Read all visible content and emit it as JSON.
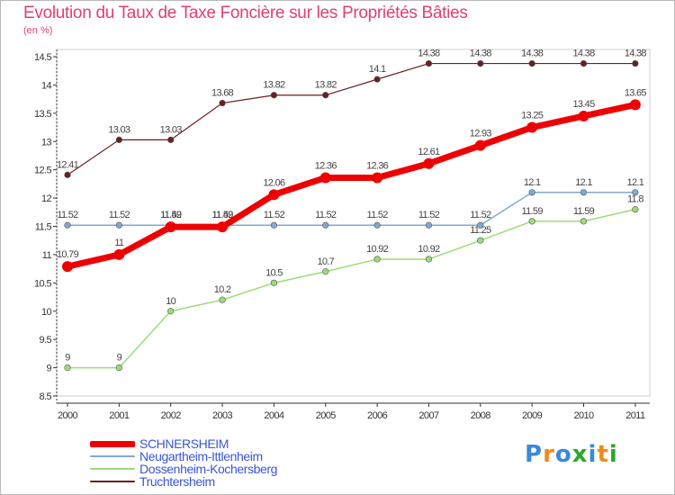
{
  "chart_data": {
    "type": "line",
    "title": "Evolution du Taux de Taxe Foncière sur les Propriétés Bâties",
    "unit_label": "(en %)",
    "x": [
      "2000",
      "2001",
      "2002",
      "2003",
      "2004",
      "2005",
      "2006",
      "2007",
      "2008",
      "2009",
      "2010",
      "2011"
    ],
    "yticks": [
      "8.5",
      "9",
      "9.5",
      "10",
      "10.5",
      "11",
      "11.5",
      "12",
      "12.5",
      "13",
      "13.5",
      "14",
      "14.5"
    ],
    "ylim": [
      8.5,
      14.5
    ],
    "grid": false,
    "legend_position": "bottom-left",
    "series": [
      {
        "name": "Truchtersheim",
        "color": "#6b1f1f",
        "width": 1.2,
        "values": [
          12.41,
          13.03,
          13.03,
          13.68,
          13.82,
          13.82,
          14.1,
          14.38,
          14.38,
          14.38,
          14.38,
          14.38
        ],
        "labels": [
          "12.41",
          "13.03",
          "13.03",
          "13.68",
          "13.82",
          "13.82",
          "14.1",
          "14.38",
          "14.38",
          "14.38",
          "14.38",
          "14.38"
        ]
      },
      {
        "name": "Dossenheim-Kochersberg",
        "color": "#99dd77",
        "width": 1.5,
        "values": [
          9,
          9,
          10,
          10.2,
          10.5,
          10.7,
          10.92,
          10.92,
          11.25,
          11.59,
          11.59,
          11.8
        ],
        "labels": [
          "9",
          "9",
          "10",
          "10.2",
          "10.5",
          "10.7",
          "10.92",
          "10.92",
          "11.25",
          "11.59",
          "11.59",
          "11.8"
        ]
      },
      {
        "name": "Neugartheim-Ittlenheim",
        "color": "#7faad0",
        "width": 1.5,
        "values": [
          11.52,
          11.52,
          11.52,
          11.52,
          11.52,
          11.52,
          11.52,
          11.52,
          11.52,
          12.1,
          12.1,
          12.1
        ],
        "labels": [
          "11.52",
          "11.52",
          "11.52",
          "11.52",
          "11.52",
          "11.52",
          "11.52",
          "11.52",
          "11.52",
          "12.1",
          "12.1",
          "12.1"
        ]
      },
      {
        "name": "SCHNERSHEIM",
        "color": "#ee0000",
        "width": 7,
        "values": [
          10.79,
          11,
          11.49,
          11.49,
          12.06,
          12.36,
          12.36,
          12.61,
          12.93,
          13.25,
          13.45,
          13.65
        ],
        "labels": [
          "10.79",
          "11",
          "11.49",
          "11.49",
          "12.06",
          "12.36",
          "12.36",
          "12.61",
          "12.93",
          "13.25",
          "13.45",
          "13.65"
        ]
      }
    ],
    "legend_order": [
      "SCHNERSHEIM",
      "Neugartheim-Ittlenheim",
      "Dossenheim-Kochersberg",
      "Truchtersheim"
    ]
  },
  "logo": {
    "text": "Proxiti",
    "colors": [
      "#3a8ad8",
      "#f08a1a",
      "#3a8ad8",
      "#2aa82a",
      "#3a8ad8",
      "#f08a1a",
      "#2aa82a"
    ]
  }
}
